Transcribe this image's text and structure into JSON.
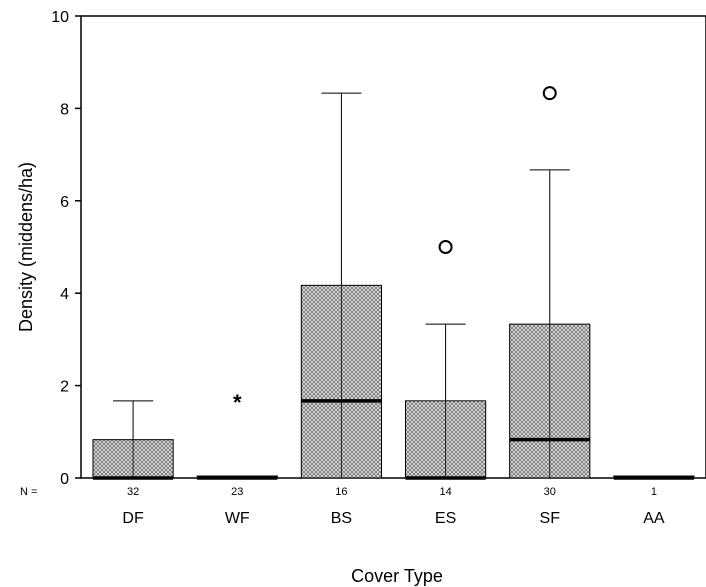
{
  "chart_data": {
    "type": "boxplot",
    "title": "",
    "xlabel": "Cover Type",
    "ylabel": "Density (middens/ha)",
    "ylim": [
      0,
      10
    ],
    "yticks": [
      0,
      2,
      4,
      6,
      8,
      10
    ],
    "n_prefix": "N =",
    "grid": false,
    "colors": {
      "box_fill": "#d9d9d9",
      "hatch": "#555555",
      "line": "#000000"
    },
    "categories": [
      {
        "label": "DF",
        "n": "32",
        "min": 0,
        "q1": 0,
        "median": 0,
        "q3": 0.83,
        "max": 1.67,
        "outliers": [],
        "extremes": []
      },
      {
        "label": "WF",
        "n": "23",
        "min": 0,
        "q1": 0,
        "median": 0,
        "q3": 0,
        "max": 0,
        "outliers": [],
        "extremes": [
          1.67
        ]
      },
      {
        "label": "BS",
        "n": "16",
        "min": 0,
        "q1": 0,
        "median": 1.67,
        "q3": 4.17,
        "max": 8.33,
        "outliers": [],
        "extremes": []
      },
      {
        "label": "ES",
        "n": "14",
        "min": 0,
        "q1": 0,
        "median": 0,
        "q3": 1.67,
        "max": 3.33,
        "outliers": [
          5.0
        ],
        "extremes": []
      },
      {
        "label": "SF",
        "n": "30",
        "min": 0,
        "q1": 0,
        "median": 0.83,
        "q3": 3.33,
        "max": 6.67,
        "outliers": [
          8.33
        ],
        "extremes": []
      },
      {
        "label": "AA",
        "n": "1",
        "min": 0,
        "q1": 0,
        "median": 0,
        "q3": 0,
        "max": 0,
        "outliers": [],
        "extremes": []
      }
    ]
  }
}
